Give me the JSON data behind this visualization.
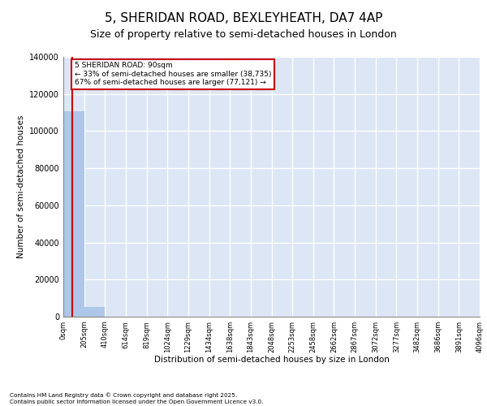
{
  "title": "5, SHERIDAN ROAD, BEXLEYHEATH, DA7 4AP",
  "subtitle": "Size of property relative to semi-detached houses in London",
  "xlabel": "Distribution of semi-detached houses by size in London",
  "ylabel": "Number of semi-detached houses",
  "property_size": 90,
  "annotation_text": "5 SHERIDAN ROAD: 90sqm\n← 33% of semi-detached houses are smaller (38,735)\n67% of semi-detached houses are larger (77,121) →",
  "bin_labels": [
    "0sqm",
    "205sqm",
    "410sqm",
    "614sqm",
    "819sqm",
    "1024sqm",
    "1229sqm",
    "1434sqm",
    "1638sqm",
    "1843sqm",
    "2048sqm",
    "2253sqm",
    "2458sqm",
    "2662sqm",
    "2867sqm",
    "3072sqm",
    "3277sqm",
    "3482sqm",
    "3686sqm",
    "3891sqm",
    "4096sqm"
  ],
  "bar_values": [
    110856,
    5200,
    0,
    0,
    0,
    0,
    0,
    0,
    0,
    0,
    0,
    0,
    0,
    0,
    0,
    0,
    0,
    0,
    0,
    0
  ],
  "bar_color": "#aec6e8",
  "vline_color": "#cc0000",
  "annotation_box_color": "#cc0000",
  "background_color": "#dce6f5",
  "ylim": [
    0,
    140000
  ],
  "yticks": [
    0,
    20000,
    40000,
    60000,
    80000,
    100000,
    120000,
    140000
  ],
  "footer_text": "Contains HM Land Registry data © Crown copyright and database right 2025.\nContains public sector information licensed under the Open Government Licence v3.0.",
  "grid_color": "#ffffff",
  "title_fontsize": 11,
  "subtitle_fontsize": 9,
  "label_fontsize": 7.5,
  "tick_fontsize": 6
}
